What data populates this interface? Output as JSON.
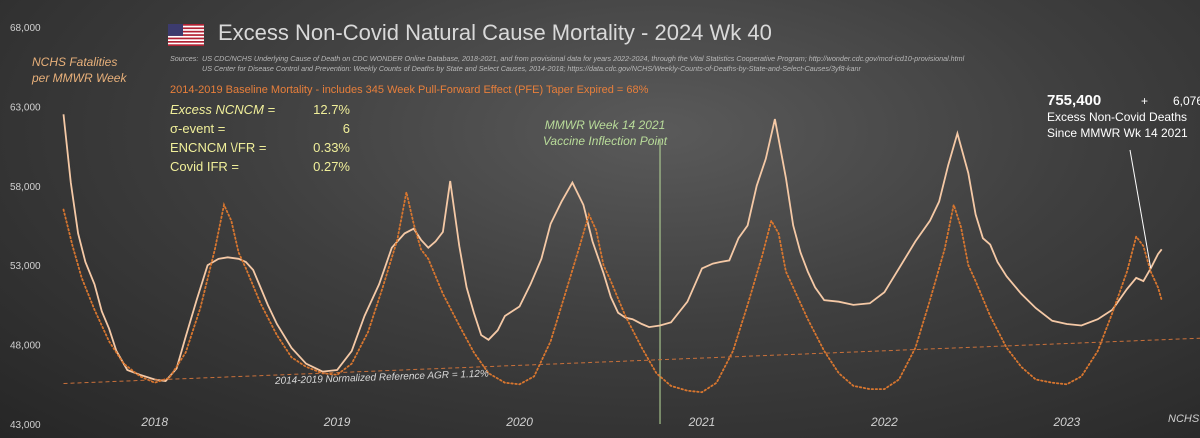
{
  "header": {
    "title": "Excess Non-Covid Natural Cause Mortality - 2024 Wk 40",
    "sources_label": "Sources:",
    "sources_line1": "US CDC/NCHS Underlying Cause of Death on CDC WONDER Online Database, 2018-2021, and from provisional data for years 2022-2024, through the Vital Statistics Cooperative Program; http://wonder.cdc.gov/mcd-icd10-provisional.html",
    "sources_line2": "US Center for Disease Control and Prevention: Weekly  Counts of Deaths by State and Select Causes, 2014-2018; https://data.cdc.gov/NCHS/Weekly-Counts-of-Deaths-by-State-and-Select-Causes/3yf8-kanr"
  },
  "annotations": {
    "ylabel_line1": "NCHS Fatalities",
    "ylabel_line2": "per MMWR Week",
    "baseline_text": "2014-2019 Baseline Mortality - includes 345 Week Pull-Forward Effect (PFE) Taper Expired =   68%",
    "stats": [
      {
        "key": "Excess NCNCM =",
        "value": "12.7%"
      },
      {
        "key": "σ-event =",
        "value": "6"
      },
      {
        "key": "ENCNCM \\/FR =",
        "value": "0.33%"
      },
      {
        "key": "Covid IFR =",
        "value": "0.27%"
      }
    ],
    "vaccine_line1": "MMWR Week 14 2021",
    "vaccine_line2": "Vaccine Inflection Point",
    "excess_total": "755,400",
    "excess_plus": "+",
    "excess_second": "6,076",
    "excess_line1": "Excess  Non-Covid Deaths",
    "excess_line2": "Since MMWR Wk 14 2021",
    "reference_label": "2014-2019 Normalized Reference AGR = 1.12%",
    "corner_text": "NCHS M"
  },
  "colors": {
    "actual": "#f5c9a6",
    "baseline": "#d8762f",
    "reference": "#c9703a",
    "vaccine_line": "#b9dc9a",
    "axis_text": "#d0d0d0"
  },
  "chart_data": {
    "type": "line",
    "title": "Excess Non-Covid Natural Cause Mortality - 2024 Wk 40",
    "ylabel": "NCHS Fatalities per MMWR Week",
    "ylim": [
      43000,
      68000
    ],
    "yticks": [
      43000,
      48000,
      53000,
      58000,
      63000,
      68000
    ],
    "ytick_labels": [
      "43,000",
      "48,000",
      "53,000",
      "58,000",
      "63,000",
      "68,000"
    ],
    "x_unit": "year (fractional, MMWR week / 52)",
    "xlim": [
      2017.97,
      2024.23
    ],
    "year_labels": [
      "2018",
      "2019",
      "2020",
      "2021",
      "2022",
      "2023"
    ],
    "year_label_positions": [
      2018.5,
      2019.5,
      2020.5,
      2021.5,
      2022.5,
      2023.5
    ],
    "grid": false,
    "legend": "none",
    "vertical_marker": {
      "x": 2021.27,
      "label": "MMWR Week 14 2021 Vaccine Inflection Point"
    },
    "series": [
      {
        "name": "",
        "style": "solid",
        "x": [
          2018.0,
          2018.04,
          2018.08,
          2018.12,
          2018.17,
          2018.21,
          2018.25,
          2018.29,
          2018.35,
          2018.42,
          2018.5,
          2018.56,
          2018.62,
          2018.67,
          2018.73,
          2018.79,
          2018.85,
          2018.9,
          2018.96,
          2019.0,
          2019.04,
          2019.08,
          2019.12,
          2019.17,
          2019.25,
          2019.33,
          2019.42,
          2019.5,
          2019.58,
          2019.65,
          2019.73,
          2019.8,
          2019.87,
          2019.92,
          2019.96,
          2020.0,
          2020.04,
          2020.08,
          2020.12,
          2020.17,
          2020.21,
          2020.25,
          2020.29,
          2020.33,
          2020.38,
          2020.42,
          2020.46,
          2020.5,
          2020.56,
          2020.62,
          2020.67,
          2020.73,
          2020.79,
          2020.85,
          2020.9,
          2020.96,
          2021.0,
          2021.04,
          2021.08,
          2021.12,
          2021.17,
          2021.21,
          2021.27,
          2021.33,
          2021.42,
          2021.5,
          2021.56,
          2021.6,
          2021.65,
          2021.7,
          2021.75,
          2021.8,
          2021.85,
          2021.9,
          2021.96,
          2022.0,
          2022.04,
          2022.08,
          2022.12,
          2022.17,
          2022.25,
          2022.33,
          2022.42,
          2022.5,
          2022.58,
          2022.67,
          2022.75,
          2022.8,
          2022.85,
          2022.9,
          2022.96,
          2023.0,
          2023.04,
          2023.08,
          2023.12,
          2023.17,
          2023.25,
          2023.33,
          2023.42,
          2023.5,
          2023.58,
          2023.67,
          2023.75,
          2023.83,
          2023.88,
          2023.92,
          2023.96,
          2024.0,
          2024.02
        ],
        "y": [
          62500,
          58200,
          55000,
          53200,
          51800,
          50100,
          49000,
          47600,
          46400,
          46100,
          45800,
          45700,
          46500,
          48500,
          50800,
          53000,
          53400,
          53500,
          53400,
          53200,
          52700,
          51600,
          50500,
          49300,
          47800,
          46800,
          46300,
          46400,
          47600,
          49800,
          51800,
          54100,
          55000,
          55300,
          54600,
          54100,
          54500,
          55100,
          58300,
          54200,
          51600,
          50000,
          48600,
          48300,
          48900,
          49800,
          50100,
          50400,
          51800,
          53400,
          55600,
          57000,
          58200,
          56800,
          54500,
          52500,
          51000,
          50000,
          49700,
          49600,
          49300,
          49100,
          49200,
          49400,
          50700,
          52800,
          53100,
          53200,
          53300,
          54700,
          55500,
          58000,
          59700,
          62200,
          58500,
          55500,
          53800,
          52600,
          51600,
          50800,
          50700,
          50500,
          50600,
          51300,
          52800,
          54500,
          55800,
          57000,
          59300,
          61300,
          58800,
          56200,
          54700,
          54300,
          53200,
          52300,
          51200,
          50300,
          49500,
          49300,
          49200,
          49600,
          50200,
          51500,
          52200,
          52000,
          52800,
          53700,
          54000
        ]
      },
      {
        "name": "2014-2019 Baseline Mortality",
        "style": "dotted",
        "x": [
          2018.0,
          2018.05,
          2018.1,
          2018.17,
          2018.25,
          2018.33,
          2018.42,
          2018.5,
          2018.58,
          2018.67,
          2018.75,
          2018.83,
          2018.88,
          2018.92,
          2018.96,
          2019.0,
          2019.08,
          2019.17,
          2019.25,
          2019.33,
          2019.42,
          2019.5,
          2019.58,
          2019.67,
          2019.75,
          2019.83,
          2019.88,
          2019.92,
          2019.96,
          2020.0,
          2020.08,
          2020.17,
          2020.25,
          2020.33,
          2020.42,
          2020.5,
          2020.58,
          2020.67,
          2020.75,
          2020.83,
          2020.88,
          2020.92,
          2020.96,
          2021.0,
          2021.08,
          2021.17,
          2021.25,
          2021.33,
          2021.42,
          2021.5,
          2021.58,
          2021.67,
          2021.75,
          2021.83,
          2021.88,
          2021.92,
          2021.96,
          2022.0,
          2022.08,
          2022.17,
          2022.25,
          2022.33,
          2022.42,
          2022.5,
          2022.58,
          2022.67,
          2022.75,
          2022.83,
          2022.88,
          2022.92,
          2022.96,
          2023.0,
          2023.08,
          2023.17,
          2023.25,
          2023.33,
          2023.42,
          2023.5,
          2023.58,
          2023.67,
          2023.75,
          2023.83,
          2023.88,
          2023.92,
          2023.96,
          2024.0,
          2024.02
        ],
        "y": [
          56500,
          54200,
          52200,
          50200,
          48200,
          46800,
          46000,
          45600,
          45900,
          47500,
          50300,
          54000,
          56800,
          55800,
          53800,
          52800,
          50600,
          48600,
          47200,
          46600,
          46200,
          46100,
          46800,
          48800,
          51600,
          54600,
          57600,
          55600,
          54000,
          53400,
          51200,
          49200,
          47500,
          46200,
          45600,
          45500,
          46000,
          48200,
          51200,
          54200,
          56200,
          55200,
          53000,
          52000,
          49800,
          47800,
          46200,
          45400,
          45100,
          45000,
          45600,
          47600,
          50500,
          53600,
          55800,
          55000,
          52600,
          51600,
          49600,
          47600,
          46200,
          45400,
          45200,
          45200,
          45800,
          47800,
          50800,
          54000,
          56800,
          55400,
          53000,
          52000,
          49800,
          47800,
          46600,
          45800,
          45600,
          45500,
          46000,
          47600,
          50000,
          52600,
          54800,
          54200,
          52600,
          51600,
          50800
        ]
      },
      {
        "name": "2014-2019 Normalized Reference AGR = 1.12%",
        "style": "dashed",
        "x": [
          2018.0,
          2024.23
        ],
        "y": [
          45550,
          48400
        ]
      }
    ]
  }
}
